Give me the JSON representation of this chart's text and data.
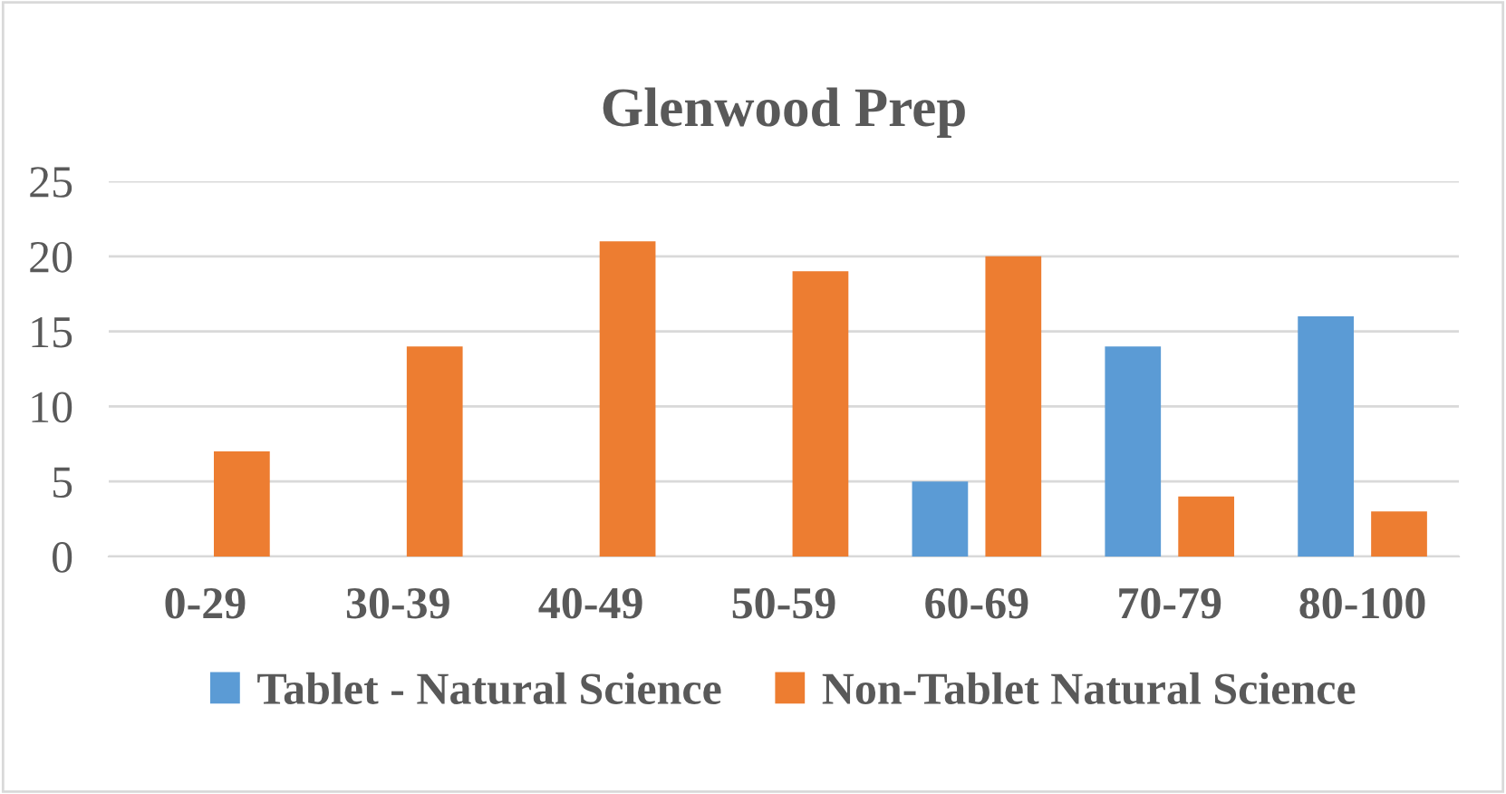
{
  "chart_data": {
    "type": "bar",
    "title": "Glenwood Prep",
    "categories": [
      "0-29",
      "30-39",
      "40-49",
      "50-59",
      "60-69",
      "70-79",
      "80-100"
    ],
    "series": [
      {
        "name": "Tablet - Natural Science",
        "color": "#5b9bd5",
        "values": [
          0,
          0,
          0,
          0,
          5,
          14,
          16
        ]
      },
      {
        "name": "Non-Tablet Natural Science",
        "color": "#ed7d31",
        "values": [
          7,
          14,
          21,
          19,
          20,
          4,
          3
        ]
      }
    ],
    "ylim": [
      0,
      25
    ],
    "yticks": [
      0,
      5,
      10,
      15,
      20,
      25
    ],
    "grid": "y",
    "legend": "bottom"
  }
}
